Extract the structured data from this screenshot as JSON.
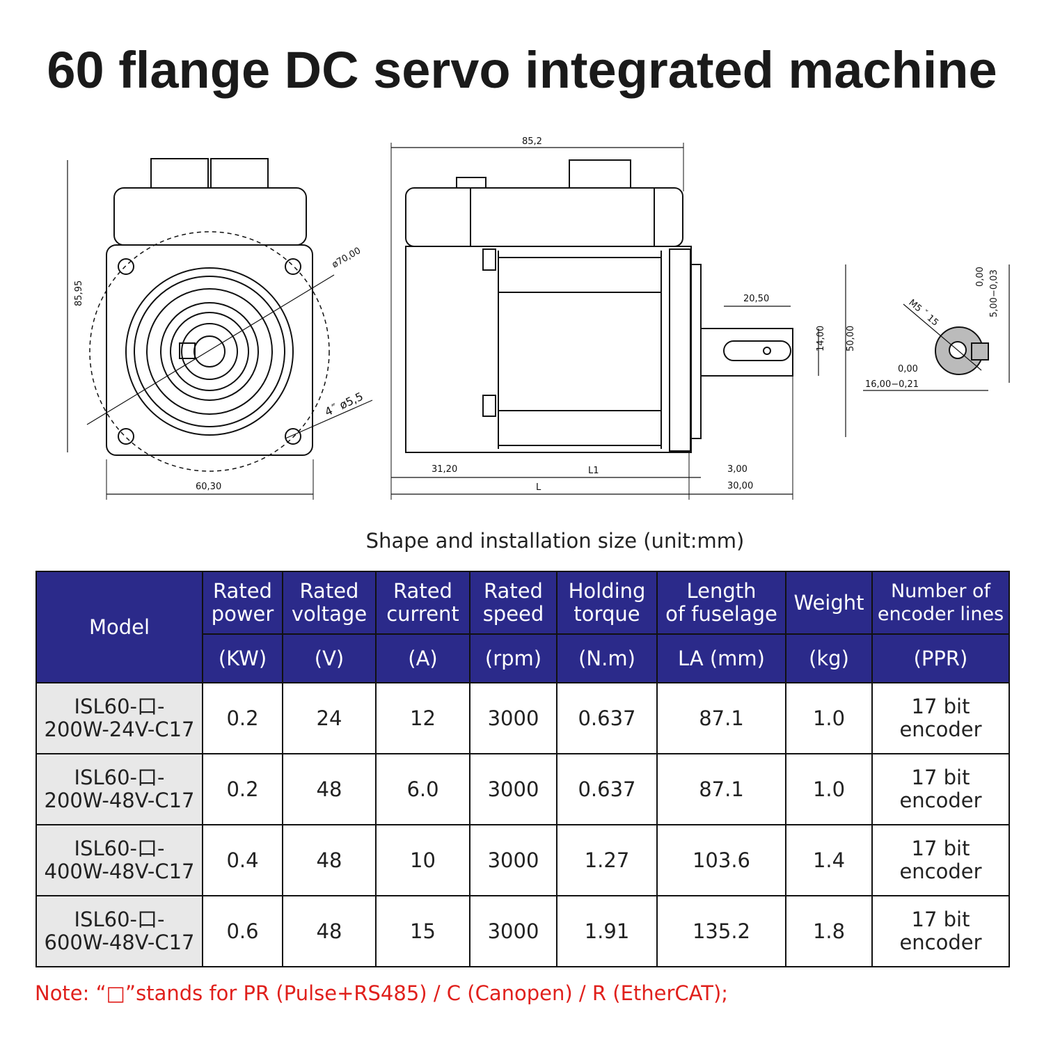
{
  "title": "60 flange DC servo integrated machine",
  "drawing": {
    "front": {
      "height": "85,95",
      "width": "60,30",
      "circle": "ø70,00",
      "holes": "4˝ ø5,5"
    },
    "side": {
      "top": "85,2",
      "d1": "31,20",
      "l1": "L1",
      "l": "L",
      "d2": "3,00",
      "d3": "30,00",
      "key": "20,50",
      "key_w": "14,00",
      "flange": "50,00"
    },
    "section": {
      "thread": "M5 ˇ 15",
      "tol_top": "0,00",
      "key_height": "5,00−0,03",
      "tol_bot": "0,00",
      "diameter": "16,00−0,21"
    }
  },
  "caption": "Shape and installation size (unit:mm)",
  "table": {
    "header": {
      "model": "Model",
      "columns": [
        {
          "l1": "Rated",
          "l2": "power",
          "unit": "(KW)"
        },
        {
          "l1": "Rated",
          "l2": "voltage",
          "unit": "(V)"
        },
        {
          "l1": "Rated",
          "l2": "current",
          "unit": "(A)"
        },
        {
          "l1": "Rated",
          "l2": "speed",
          "unit": "(rpm)"
        },
        {
          "l1": "Holding",
          "l2": "torque",
          "unit": "(N.m)"
        },
        {
          "l1": "Length",
          "l2": "of fuselage",
          "unit": "LA (mm)"
        },
        {
          "l1": "Weight",
          "l2": "",
          "unit": "(kg)"
        },
        {
          "l1": "Number of",
          "l2": "encoder lines",
          "unit": "(PPR)"
        }
      ]
    },
    "rows": [
      {
        "m1": "ISL60-口-",
        "m2": "200W-24V-C17",
        "power": "0.2",
        "voltage": "24",
        "current": "12",
        "speed": "3000",
        "torque": "0.637",
        "length": "87.1",
        "weight": "1.0",
        "e1": "17 bit",
        "e2": "encoder"
      },
      {
        "m1": "ISL60-口-",
        "m2": "200W-48V-C17",
        "power": "0.2",
        "voltage": "48",
        "current": "6.0",
        "speed": "3000",
        "torque": "0.637",
        "length": "87.1",
        "weight": "1.0",
        "e1": "17 bit",
        "e2": "encoder"
      },
      {
        "m1": "ISL60-口-",
        "m2": "400W-48V-C17",
        "power": "0.4",
        "voltage": "48",
        "current": "10",
        "speed": "3000",
        "torque": "1.27",
        "length": "103.6",
        "weight": "1.4",
        "e1": "17 bit",
        "e2": "encoder"
      },
      {
        "m1": "ISL60-口-",
        "m2": "600W-48V-C17",
        "power": "0.6",
        "voltage": "48",
        "current": "15",
        "speed": "3000",
        "torque": "1.91",
        "length": "135.2",
        "weight": "1.8",
        "e1": "17 bit",
        "e2": "encoder"
      }
    ]
  },
  "note": "Note: “□”stands for PR (Pulse+RS485) / C (Canopen) / R (EtherCAT);",
  "colors": {
    "header_bg": "#2b2a8a",
    "model_bg": "#e8e8e8",
    "note": "#e0201c"
  }
}
